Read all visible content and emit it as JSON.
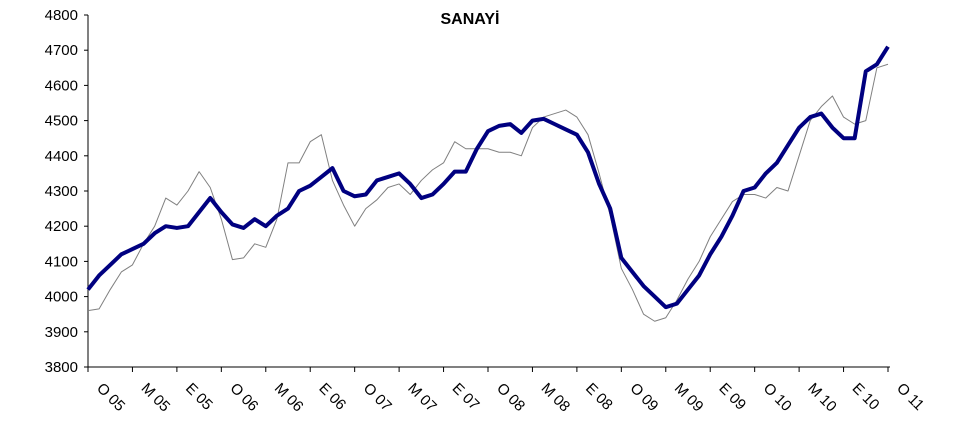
{
  "chart_data": {
    "type": "line",
    "title": "SANAYİ",
    "categories": [
      "O 05",
      null,
      null,
      null,
      "M 05",
      null,
      null,
      null,
      "E 05",
      null,
      null,
      null,
      "O 06",
      null,
      null,
      null,
      "M 06",
      null,
      null,
      null,
      "E 06",
      null,
      null,
      null,
      "O 07",
      null,
      null,
      null,
      "M 07",
      null,
      null,
      null,
      "E 07",
      null,
      null,
      null,
      "O 08",
      null,
      null,
      null,
      "M 08",
      null,
      null,
      null,
      "E 08",
      null,
      null,
      null,
      "O 09",
      null,
      null,
      null,
      "M 09",
      null,
      null,
      null,
      "E 09",
      null,
      null,
      null,
      "O 10",
      null,
      null,
      null,
      "M 10",
      null,
      null,
      null,
      "E 10",
      null,
      null,
      null,
      "O 11"
    ],
    "series": [
      {
        "color": "#808080",
        "width": 1,
        "values": [
          3960,
          3965,
          4020,
          4070,
          4090,
          4150,
          4200,
          4280,
          4260,
          4300,
          4355,
          4310,
          4220,
          4105,
          4110,
          4150,
          4140,
          4220,
          4380,
          4380,
          4440,
          4460,
          4330,
          4260,
          4200,
          4250,
          4275,
          4310,
          4320,
          4290,
          4330,
          4360,
          4380,
          4440,
          4420,
          4420,
          4420,
          4410,
          4410,
          4400,
          4480,
          4510,
          4520,
          4530,
          4510,
          4460,
          4350,
          4230,
          4080,
          4020,
          3950,
          3930,
          3940,
          3990,
          4050,
          4100,
          4170,
          4220,
          4270,
          4290,
          4290,
          4280,
          4310,
          4300,
          4400,
          4500,
          4540,
          4570,
          4510,
          4490,
          4500,
          4650,
          4660
        ]
      },
      {
        "color": "#000080",
        "width": 4,
        "values": [
          4020,
          4060,
          4090,
          4120,
          4135,
          4150,
          4180,
          4200,
          4195,
          4200,
          4240,
          4280,
          4240,
          4205,
          4195,
          4220,
          4200,
          4230,
          4250,
          4300,
          4315,
          4340,
          4365,
          4300,
          4285,
          4290,
          4330,
          4340,
          4350,
          4320,
          4280,
          4290,
          4320,
          4355,
          4355,
          4420,
          4470,
          4485,
          4490,
          4465,
          4500,
          4505,
          4490,
          4475,
          4460,
          4410,
          4320,
          4250,
          4110,
          4070,
          4030,
          4000,
          3970,
          3980,
          4020,
          4060,
          4120,
          4170,
          4230,
          4300,
          4310,
          4350,
          4380,
          4430,
          4480,
          4510,
          4520,
          4480,
          4450,
          4450,
          4640,
          4660,
          4710
        ]
      }
    ],
    "ylim": [
      3800,
      4800
    ],
    "yticks": [
      3800,
      3900,
      4000,
      4100,
      4200,
      4300,
      4400,
      4500,
      4600,
      4700,
      4800
    ],
    "grid": false
  }
}
